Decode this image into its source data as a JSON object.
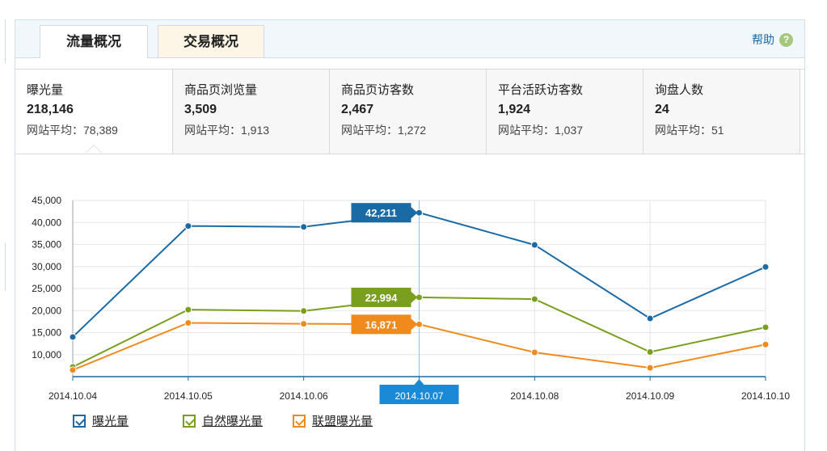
{
  "tabs": [
    {
      "label": "流量概况",
      "active": true
    },
    {
      "label": "交易概况",
      "active": false
    }
  ],
  "help": {
    "label": "帮助",
    "icon": "question-icon"
  },
  "stats": [
    {
      "label": "曝光量",
      "value": "218,146",
      "avg_label": "网站平均：",
      "avg_value": "78,389"
    },
    {
      "label": "商品页浏览量",
      "value": "3,509",
      "avg_label": "网站平均：",
      "avg_value": "1,913"
    },
    {
      "label": "商品页访客数",
      "value": "2,467",
      "avg_label": "网站平均：",
      "avg_value": "1,272"
    },
    {
      "label": "平台活跃访客数",
      "value": "1,924",
      "avg_label": "网站平均：",
      "avg_value": "1,037"
    },
    {
      "label": "询盘人数",
      "value": "24",
      "avg_label": "网站平均：",
      "avg_value": "51"
    }
  ],
  "chart_data": {
    "type": "line",
    "categories": [
      "2014.10.04",
      "2014.10.05",
      "2014.10.06",
      "2014.10.07",
      "2014.10.08",
      "2014.10.09",
      "2014.10.10"
    ],
    "yticks": [
      "10,000",
      "15,000",
      "20,000",
      "25,000",
      "30,000",
      "35,000",
      "40,000",
      "45,000"
    ],
    "ylim": [
      5000,
      45000
    ],
    "highlight_index": 3,
    "grid": true,
    "legend_position": "bottom-left",
    "series": [
      {
        "name": "曝光量",
        "color": "#1a6aa6",
        "values": [
          14000,
          39200,
          39000,
          42211,
          34900,
          18200,
          29900
        ],
        "tooltip": "42,211"
      },
      {
        "name": "自然曝光量",
        "color": "#7a9e1e",
        "values": [
          7200,
          20200,
          19900,
          22994,
          22600,
          10600,
          16200
        ],
        "tooltip": "22,994"
      },
      {
        "name": "联盟曝光量",
        "color": "#f08a1c",
        "values": [
          6500,
          17200,
          17000,
          16871,
          10500,
          7000,
          12300
        ],
        "tooltip": "16,871"
      }
    ]
  }
}
